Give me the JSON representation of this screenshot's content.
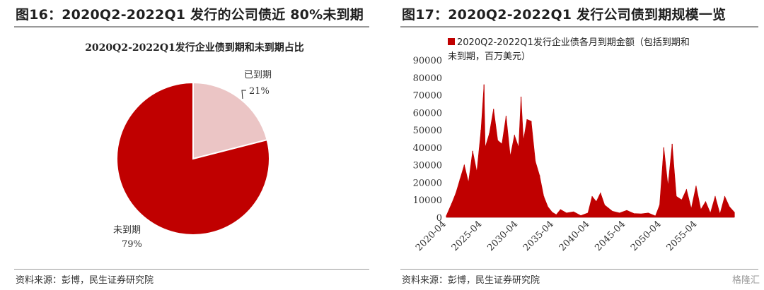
{
  "left": {
    "figure_title": "图16：2020Q2-2022Q1 发行的公司债近 80%未到期",
    "source": "资料来源：彭博，民生证券研究院"
  },
  "right": {
    "figure_title": "图17：2020Q2-2022Q1 发行公司债到期规模一览",
    "source": "资料来源：彭博，民生证券研究院",
    "watermark": "格隆汇"
  },
  "colors": {
    "primary": "#c00000",
    "secondary": "#ebc5c5"
  },
  "chart_data": [
    {
      "type": "pie",
      "title": "2020Q2-2022Q1发行企业债到期和未到期占比",
      "slices": [
        {
          "label": "已到期",
          "value": 21,
          "display": "21%",
          "color": "#ebc5c5"
        },
        {
          "label": "未到期",
          "value": 79,
          "display": "79%",
          "color": "#c00000"
        }
      ]
    },
    {
      "type": "area",
      "legend": "2020Q2-2022Q1发行企业债各月到期金额（包括到期和未到期，百万美元）",
      "legend_position": "top",
      "color": "#c00000",
      "ylim": [
        0,
        90000
      ],
      "yticks": [
        "0",
        "10000",
        "20000",
        "30000",
        "40000",
        "50000",
        "60000",
        "70000",
        "80000",
        "90000"
      ],
      "xticks": [
        "2020-04",
        "2025-04",
        "2030-04",
        "2035-04",
        "2040-04",
        "2045-04",
        "2050-04",
        "2055-04"
      ],
      "x": [
        "2020-04",
        "2021-01",
        "2021-08",
        "2022-03",
        "2022-10",
        "2023-05",
        "2023-12",
        "2024-07",
        "2025-02",
        "2025-07",
        "2025-09",
        "2026-04",
        "2026-11",
        "2027-06",
        "2028-01",
        "2028-08",
        "2029-03",
        "2029-10",
        "2030-05",
        "2030-09",
        "2031-01",
        "2031-07",
        "2032-02",
        "2032-09",
        "2033-04",
        "2033-11",
        "2034-06",
        "2035-01",
        "2035-08",
        "2036-03",
        "2037-01",
        "2038-01",
        "2039-01",
        "2040-01",
        "2040-08",
        "2041-03",
        "2041-10",
        "2042-05",
        "2043-06",
        "2044-06",
        "2045-06",
        "2046-06",
        "2047-06",
        "2048-06",
        "2049-06",
        "2050-01",
        "2050-08",
        "2051-03",
        "2051-10",
        "2052-05",
        "2053-02",
        "2053-10",
        "2054-06",
        "2055-02",
        "2055-10",
        "2056-06",
        "2057-02",
        "2057-10",
        "2058-06",
        "2059-02",
        "2059-10",
        "2060-06"
      ],
      "values": [
        1000,
        8000,
        14000,
        22000,
        30000,
        20000,
        38000,
        26000,
        50000,
        76000,
        40000,
        48000,
        62000,
        44000,
        42000,
        58000,
        35000,
        47000,
        40000,
        69000,
        44000,
        56000,
        55000,
        32000,
        24000,
        12000,
        6000,
        3000,
        1500,
        4500,
        2500,
        3200,
        1000,
        2500,
        12000,
        9000,
        14000,
        7000,
        3500,
        2500,
        4000,
        2200,
        2000,
        2500,
        800,
        7000,
        40000,
        18000,
        42000,
        12000,
        10000,
        16000,
        5000,
        18000,
        4500,
        9000,
        2500,
        12000,
        2000,
        12000,
        6000,
        3000
      ]
    }
  ]
}
